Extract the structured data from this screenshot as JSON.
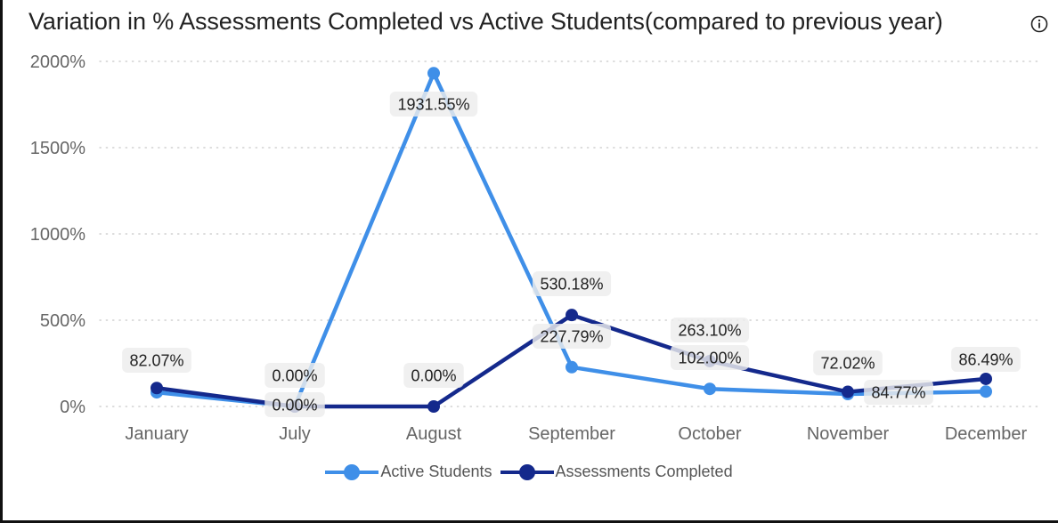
{
  "chart_data": {
    "type": "line",
    "title": "Variation in % Assessments Completed vs Active Students(compared to previous year)",
    "categories": [
      "January",
      "July",
      "August",
      "September",
      "October",
      "November",
      "December"
    ],
    "ylim": [
      0,
      2000
    ],
    "y_ticks": [
      "0%",
      "500%",
      "1000%",
      "1500%",
      "2000%"
    ],
    "grid": "horizontal dotted",
    "legend_position": "bottom-center",
    "series": [
      {
        "name": "Active Students",
        "color": "#3f8fe8",
        "values": [
          82.07,
          0.0,
          1931.55,
          227.79,
          102.0,
          72.02,
          86.49
        ],
        "labels": [
          "82.07%",
          "0.00%",
          "1931.55%",
          "227.79%",
          "102.00%",
          "72.02%",
          "86.49%"
        ]
      },
      {
        "name": "Assessments Completed",
        "color": "#14298c",
        "values": [
          107.0,
          0.0,
          0.0,
          530.18,
          263.1,
          84.77,
          160.0
        ],
        "labels": [
          "",
          "0.00%",
          "0.00%",
          "530.18%",
          "263.10%",
          "84.77%",
          ""
        ]
      }
    ]
  },
  "icons": {
    "info": "info-icon"
  }
}
